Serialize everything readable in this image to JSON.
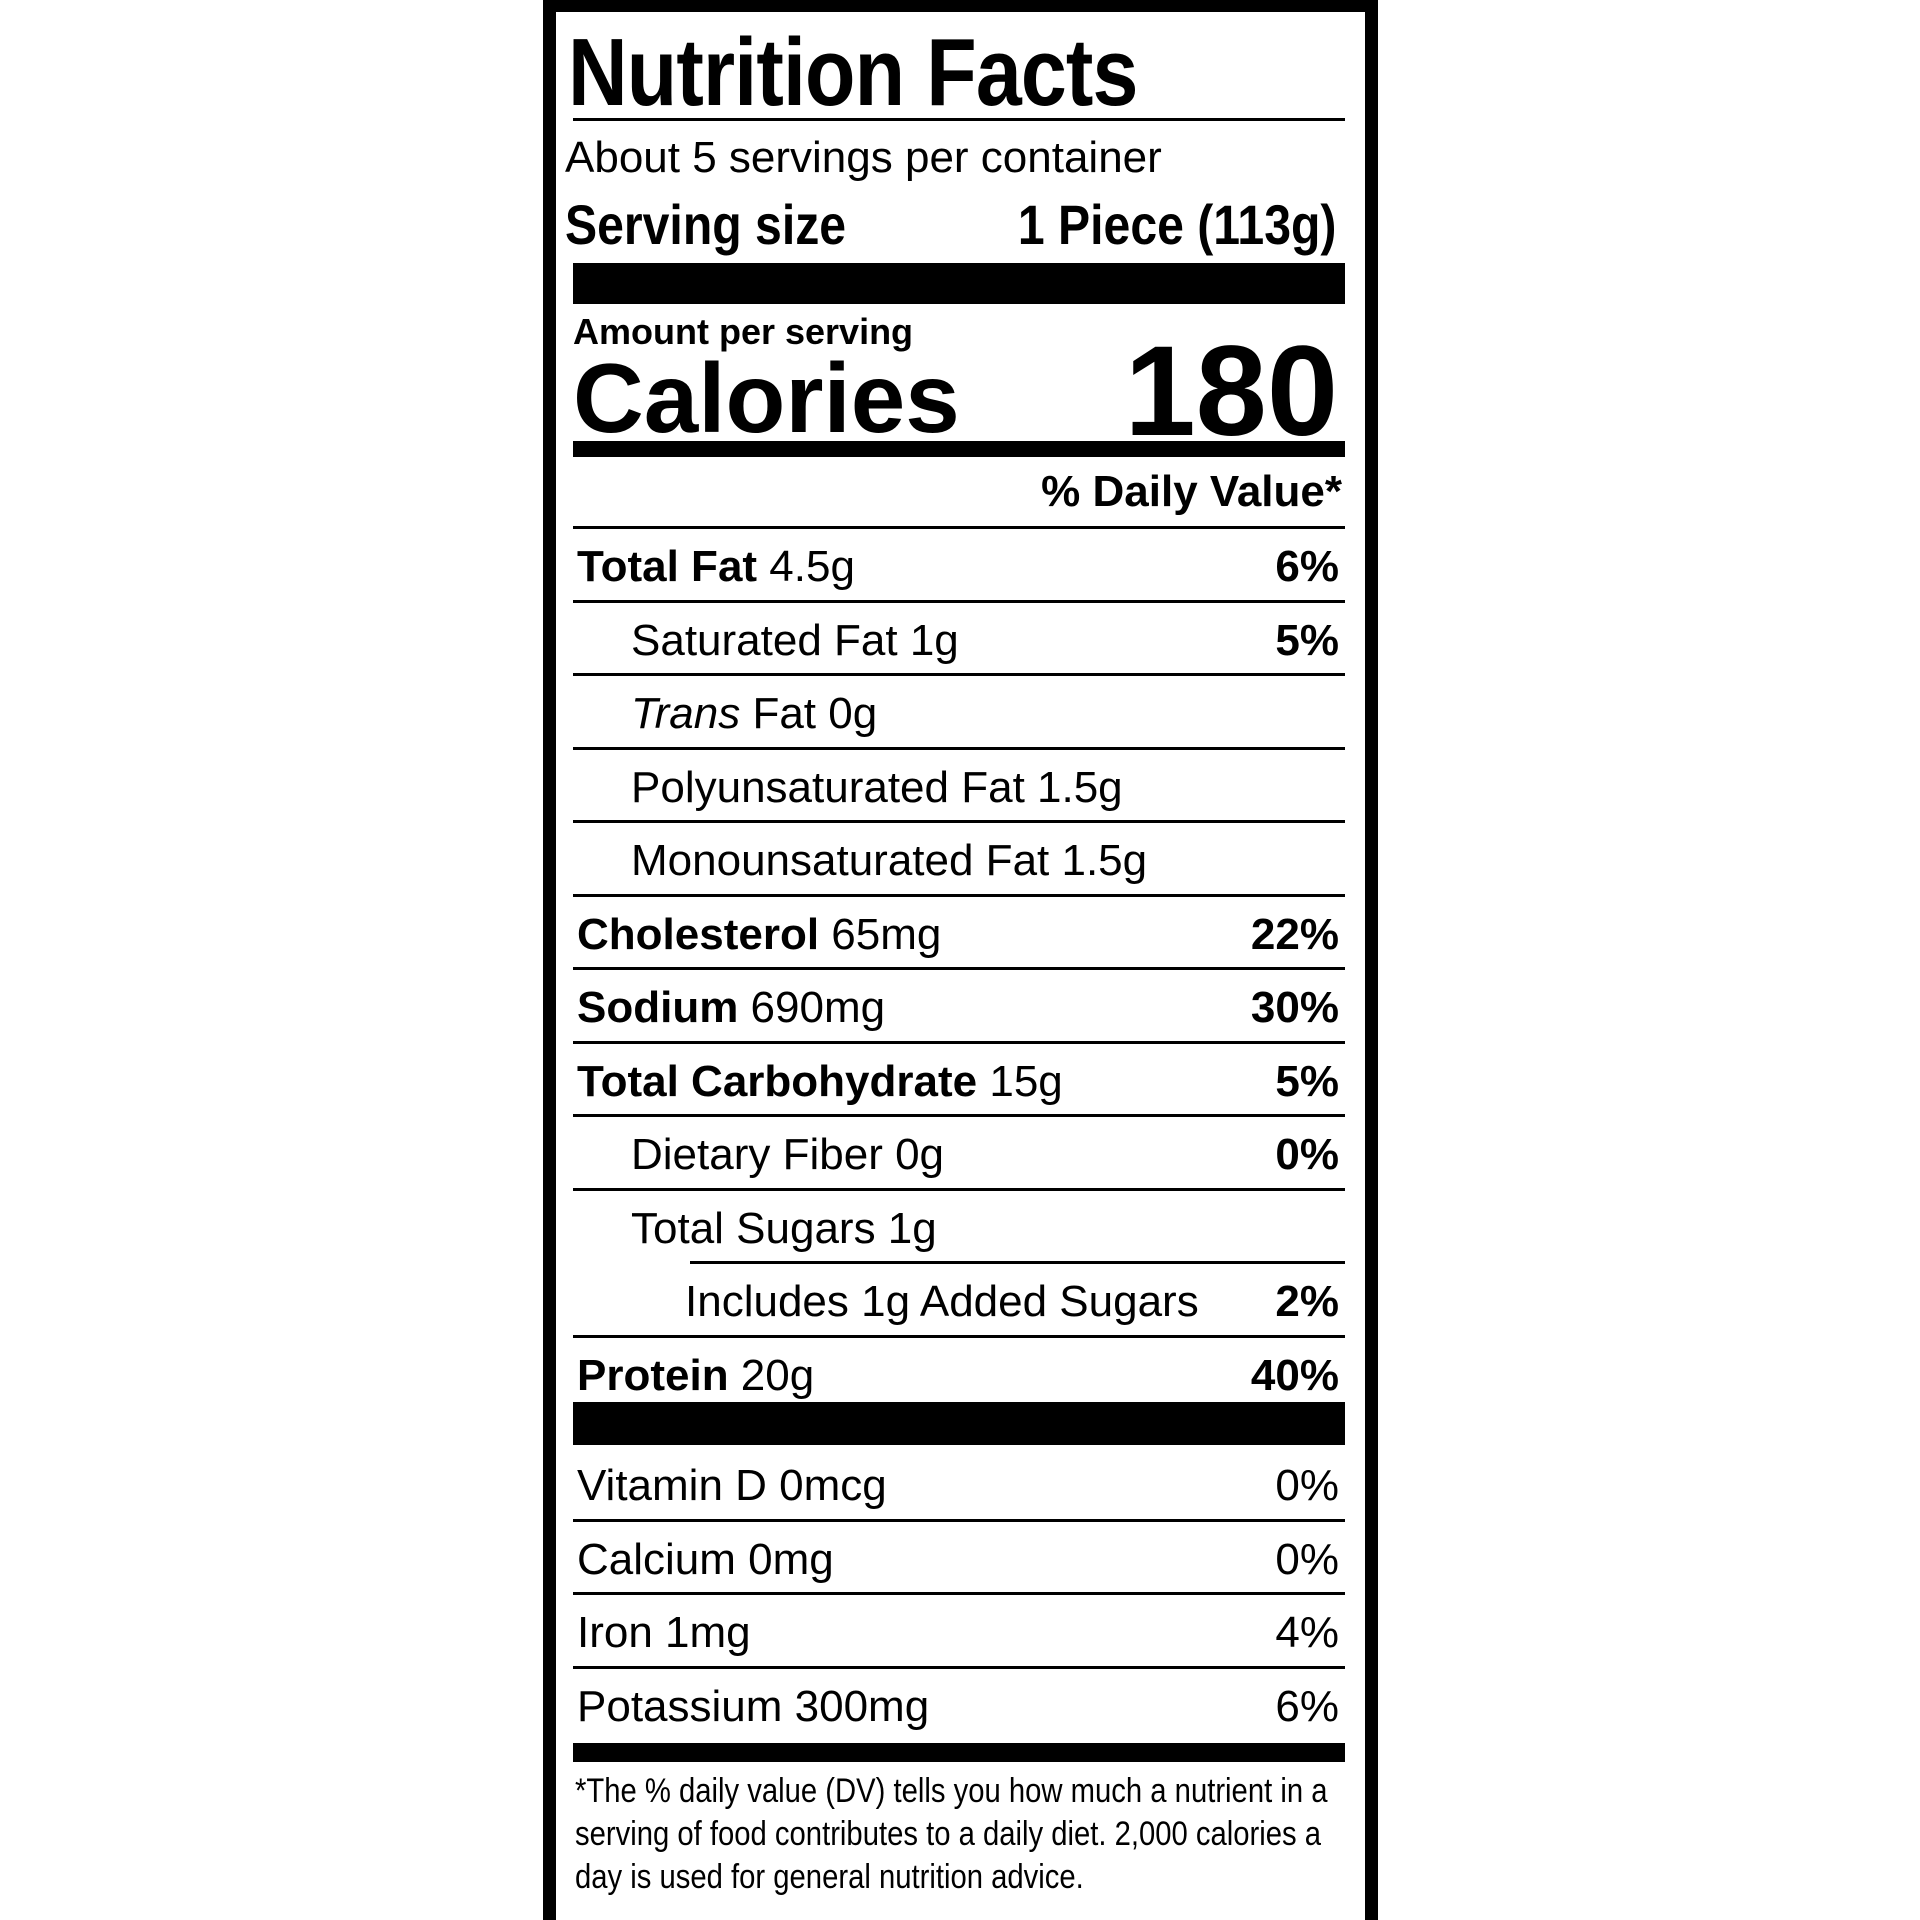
{
  "title": "Nutrition Facts",
  "servings_per_container": "About 5 servings per container",
  "serving_size_label": "Serving size",
  "serving_size_value": "1 Piece (113g)",
  "amount_per_serving": "Amount per serving",
  "calories_label": "Calories",
  "calories_value": "180",
  "daily_value_header": "% Daily Value*",
  "nutrients": [
    {
      "bold": "Total Fat",
      "rest": " 4.5g",
      "pct": "6%",
      "indent": 0
    },
    {
      "bold": "",
      "rest": "Saturated Fat 1g",
      "pct": "5%",
      "indent": 1
    },
    {
      "bold": "",
      "italic": "Trans",
      "rest": " Fat 0g",
      "pct": "",
      "indent": 1
    },
    {
      "bold": "",
      "rest": "Polyunsaturated Fat 1.5g",
      "pct": "",
      "indent": 1
    },
    {
      "bold": "",
      "rest": "Monounsaturated Fat 1.5g",
      "pct": "",
      "indent": 1
    },
    {
      "bold": "Cholesterol",
      "rest": " 65mg",
      "pct": "22%",
      "indent": 0
    },
    {
      "bold": "Sodium",
      "rest": " 690mg",
      "pct": "30%",
      "indent": 0
    },
    {
      "bold": "Total Carbohydrate",
      "rest": " 15g",
      "pct": "5%",
      "indent": 0
    },
    {
      "bold": "",
      "rest": "Dietary Fiber 0g",
      "pct": "0%",
      "indent": 1
    },
    {
      "bold": "",
      "rest": "Total Sugars 1g",
      "pct": "",
      "indent": 1
    },
    {
      "bold": "",
      "rest": "Includes 1g Added Sugars",
      "pct": "2%",
      "indent": 2
    },
    {
      "bold": "Protein",
      "rest": " 20g",
      "pct": "40%",
      "indent": 0
    }
  ],
  "vitamins": [
    {
      "rest": "Vitamin D 0mcg",
      "pct": "0%"
    },
    {
      "rest": "Calcium 0mg",
      "pct": "0%"
    },
    {
      "rest": "Iron 1mg",
      "pct": "4%"
    },
    {
      "rest": "Potassium 300mg",
      "pct": "6%"
    }
  ],
  "footnote": "*The % daily value (DV) tells you how much a nutrient in a serving of food contributes to a daily diet. 2,000 calories a day is used for general nutrition advice."
}
